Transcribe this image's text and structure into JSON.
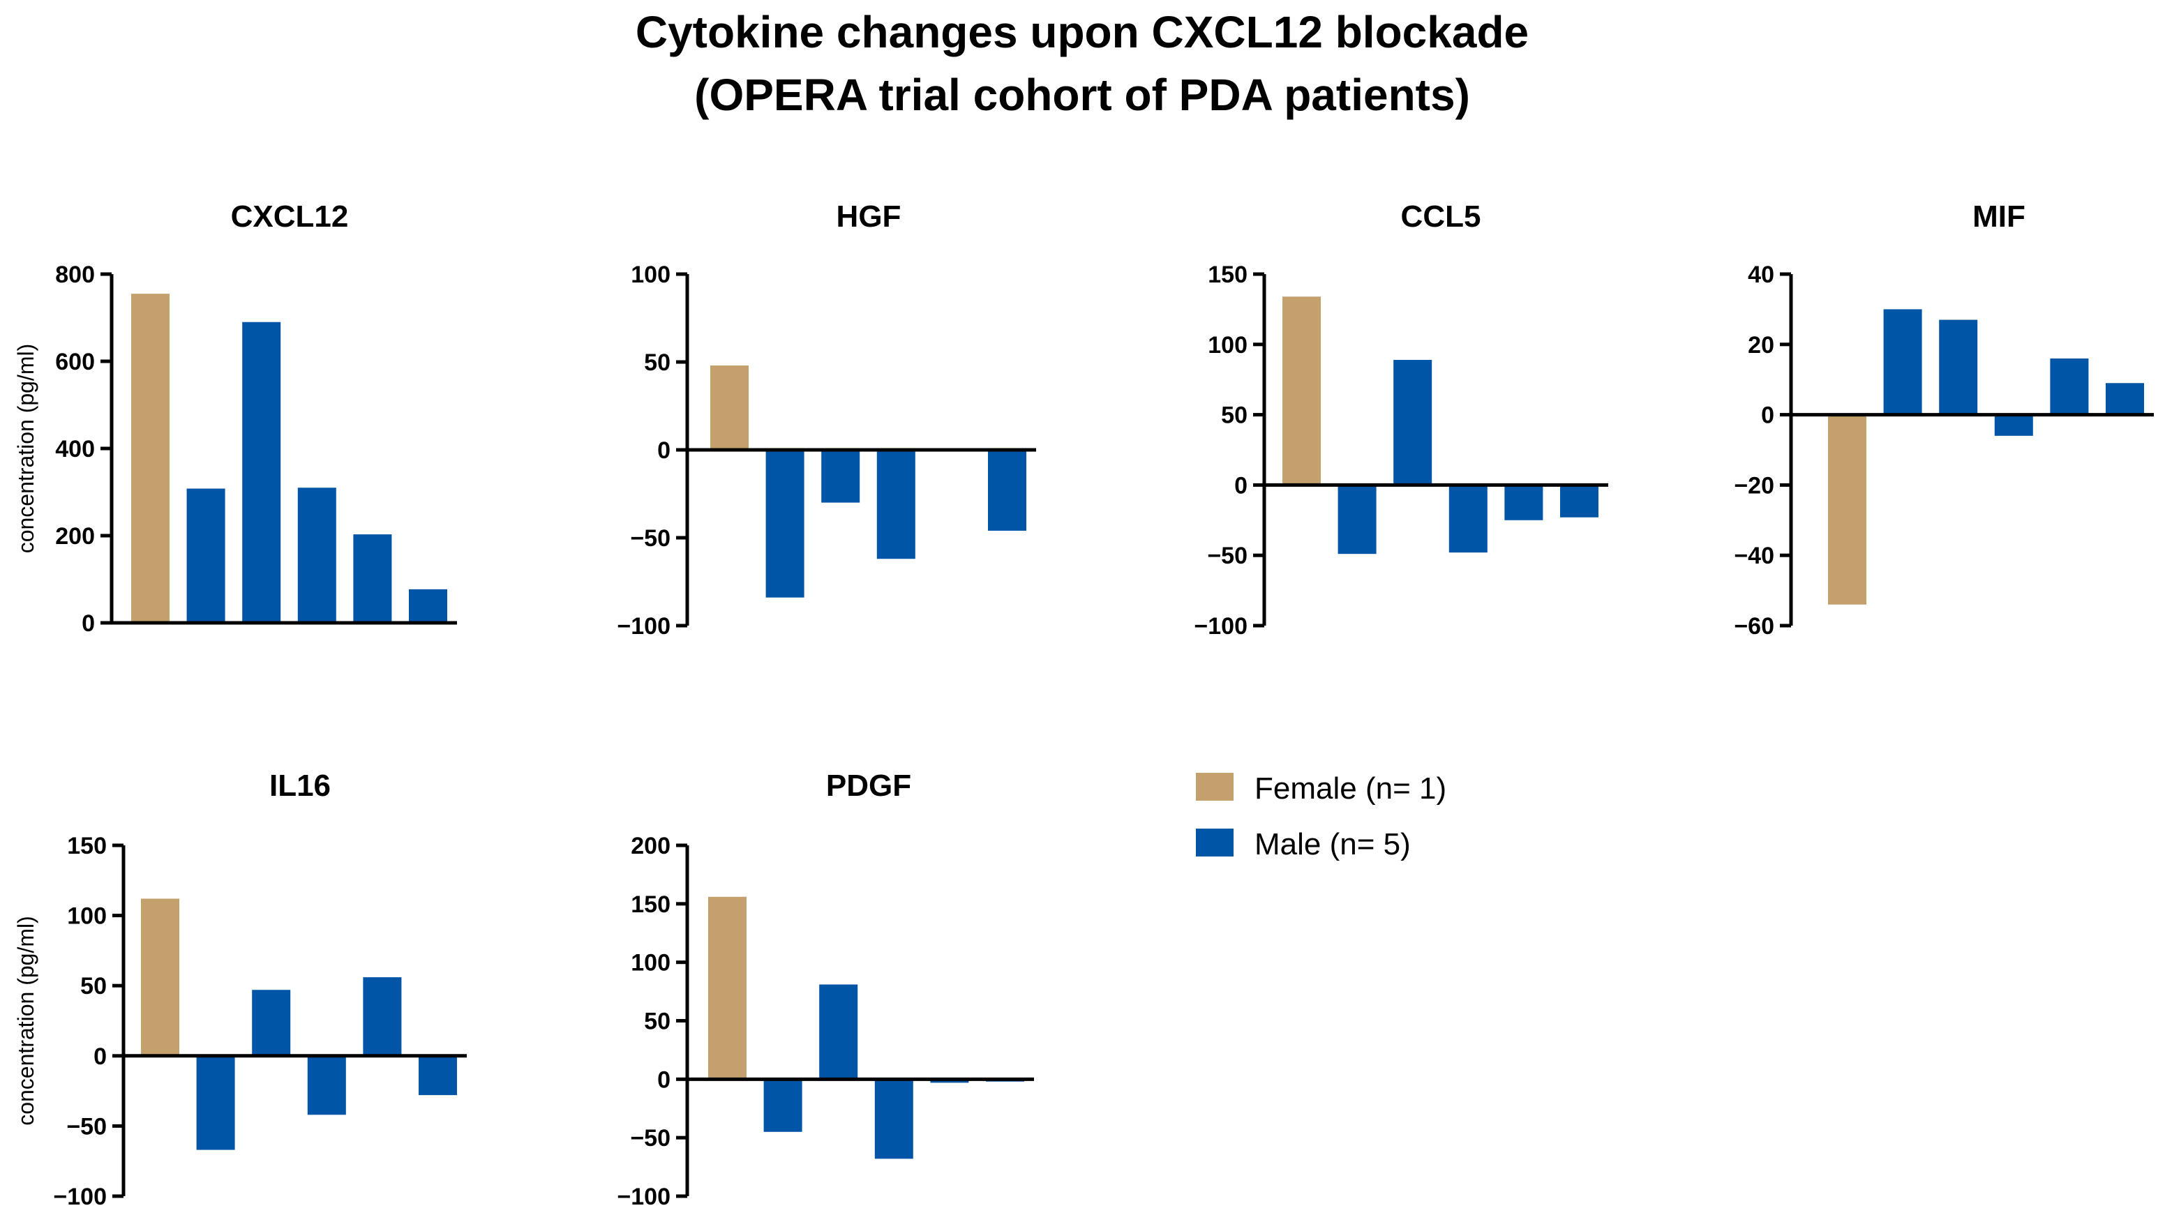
{
  "title_lines": [
    "Cytokine changes upon CXCL12 blockade",
    "(OPERA trial cohort of PDA patients)"
  ],
  "colors": {
    "female": "#C4A06D",
    "male": "#0055A6"
  },
  "legend": [
    {
      "label": "Female (n= 1)",
      "color": "#C4A06D"
    },
    {
      "label": "Male (n= 5)",
      "color": "#0055A6"
    }
  ],
  "chart_data": [
    {
      "type": "bar",
      "title": "CXCL12",
      "ylabel": "concentration (pg/ml)",
      "ylim": [
        0,
        800
      ],
      "yticks": [
        0,
        200,
        400,
        600,
        800
      ],
      "yticklabels": [
        "0",
        "200",
        "400",
        "600",
        "800"
      ],
      "values": [
        755,
        308,
        690,
        310,
        203,
        77
      ],
      "groups": [
        "female",
        "male",
        "male",
        "male",
        "male",
        "male"
      ]
    },
    {
      "type": "bar",
      "title": "HGF",
      "ylabel": "",
      "ylim": [
        -100,
        100
      ],
      "yticks": [
        -100,
        -50,
        0,
        50,
        100
      ],
      "yticklabels": [
        "−100",
        "−50",
        "0",
        "50",
        "100"
      ],
      "values": [
        48,
        -84,
        -30,
        -62,
        0,
        -46
      ],
      "groups": [
        "female",
        "male",
        "male",
        "male",
        "male",
        "male"
      ]
    },
    {
      "type": "bar",
      "title": "CCL5",
      "ylabel": "",
      "ylim": [
        -100,
        150
      ],
      "yticks": [
        -100,
        -50,
        0,
        50,
        100,
        150
      ],
      "yticklabels": [
        "−100",
        "−50",
        "0",
        "50",
        "100",
        "150"
      ],
      "values": [
        134,
        -49,
        89,
        -48,
        -25,
        -23
      ],
      "groups": [
        "female",
        "male",
        "male",
        "male",
        "male",
        "male"
      ]
    },
    {
      "type": "bar",
      "title": "MIF",
      "ylabel": "",
      "ylim": [
        -60,
        40
      ],
      "yticks": [
        -60,
        -40,
        -20,
        0,
        20,
        40
      ],
      "yticklabels": [
        "−60",
        "−40",
        "−20",
        "0",
        "20",
        "40"
      ],
      "values": [
        -54,
        30,
        27,
        -6,
        16,
        9
      ],
      "groups": [
        "female",
        "male",
        "male",
        "male",
        "male",
        "male"
      ]
    },
    {
      "type": "bar",
      "title": "IL16",
      "ylabel": "concentration (pg/ml)",
      "ylim": [
        -100,
        150
      ],
      "yticks": [
        -100,
        -50,
        0,
        50,
        100,
        150
      ],
      "yticklabels": [
        "−100",
        "−50",
        "0",
        "50",
        "100",
        "150"
      ],
      "values": [
        112,
        -67,
        47,
        -42,
        56,
        -28
      ],
      "groups": [
        "female",
        "male",
        "male",
        "male",
        "male",
        "male"
      ]
    },
    {
      "type": "bar",
      "title": "PDGF",
      "ylabel": "",
      "ylim": [
        -100,
        200
      ],
      "yticks": [
        -100,
        -50,
        0,
        50,
        100,
        150,
        200
      ],
      "yticklabels": [
        "−100",
        "−50",
        "0",
        "50",
        "100",
        "150",
        "200"
      ],
      "values": [
        156,
        -45,
        81,
        -68,
        -3,
        -2
      ],
      "groups": [
        "female",
        "male",
        "male",
        "male",
        "male",
        "male"
      ]
    }
  ]
}
